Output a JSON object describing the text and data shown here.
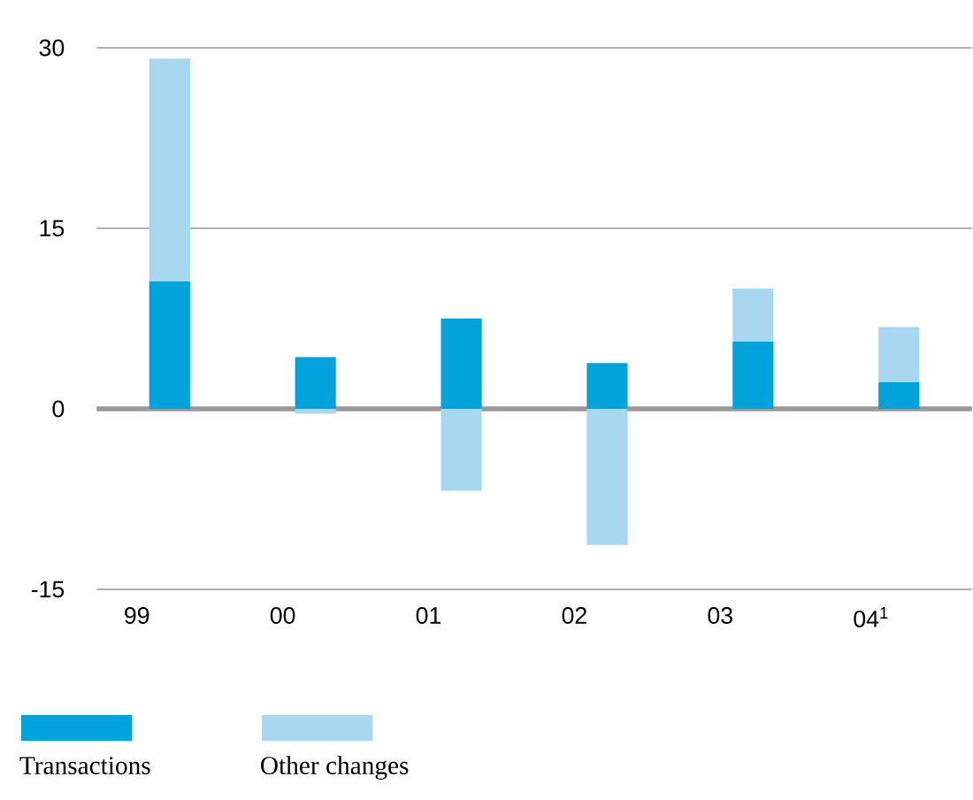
{
  "chart_data": {
    "type": "bar",
    "stacked": true,
    "categories": [
      "99",
      "00",
      "01",
      "02",
      "03",
      "04$^{1}$"
    ],
    "series": [
      {
        "name": "Transactions",
        "color": "#00a3dc",
        "values": [
          10.6,
          4.3,
          7.5,
          3.8,
          5.6,
          2.2
        ]
      },
      {
        "name": "Other changes",
        "color": "#a8d8f0",
        "values": [
          18.5,
          -0.4,
          -6.8,
          -11.3,
          4.4,
          4.6
        ]
      }
    ],
    "ylim": [
      -15,
      30
    ],
    "yticks": [
      -15,
      0,
      15,
      30
    ],
    "grid": "y",
    "legend": "bottom"
  }
}
